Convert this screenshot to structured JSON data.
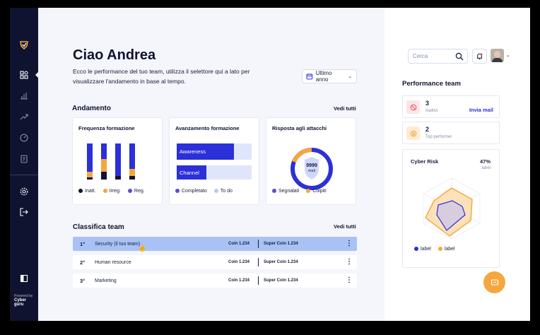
{
  "sidebar": {
    "items": [
      {
        "icon": "shield-logo-icon"
      },
      {
        "icon": "dashboard-icon"
      },
      {
        "icon": "bar-chart-icon"
      },
      {
        "icon": "trend-icon"
      },
      {
        "icon": "gauge-icon"
      },
      {
        "icon": "document-icon"
      },
      {
        "icon": "settings-icon"
      },
      {
        "icon": "logout-icon"
      },
      {
        "icon": "panel-toggle-icon"
      }
    ],
    "powered_by": "Powered by",
    "brand": "Cyber guru"
  },
  "header": {
    "greeting": "Ciao Andrea",
    "intro": "Ecco le performance del tuo team, utilizza il selettore qui a lato per visualizzare l'andamento in base al tempo.",
    "period_select": "Ultimo anno"
  },
  "andamento": {
    "title": "Andamento",
    "see_all": "Vedi tutti",
    "colors": {
      "blue": "#2b30d8",
      "orange": "#f4a73f",
      "navy": "#0f1330",
      "light": "#dfe6fb",
      "purple": "#5a4fcf"
    },
    "frequenza": {
      "title": "Frequenza formazione",
      "legend": [
        "Inatt.",
        "Irreg.",
        "Reg."
      ]
    },
    "avanzamento": {
      "title": "Avanzamento formazione",
      "bars": [
        {
          "label": "Awareness",
          "fraction": 0.76
        },
        {
          "label": "Channel",
          "fraction": 0.4
        }
      ],
      "legend": [
        "Completato",
        "To do"
      ]
    },
    "risposta": {
      "title": "Risposta agli attacchi",
      "center_value": "9999",
      "center_unit": "mail",
      "legend": [
        "Segnalati",
        "Colpiti"
      ]
    }
  },
  "classifica": {
    "title": "Classifica team",
    "see_all": "Vedi tutti",
    "rows": [
      {
        "rank": "1°",
        "name": "Security (il tuo team)",
        "coin": "Coin 1.234",
        "super": "Super Coin 1.234",
        "highlight": true
      },
      {
        "rank": "2°",
        "name": "Human resource",
        "coin": "Coin 1.234",
        "super": "Super Coin 1.234",
        "highlight": false
      },
      {
        "rank": "3°",
        "name": "Marketing",
        "coin": "Coin 1.234",
        "super": "Super Coin 1.234",
        "highlight": false
      }
    ],
    "kebab": "⋮"
  },
  "right": {
    "search_placeholder": "Cerca",
    "perf_title": "Performance team",
    "stats": [
      {
        "num": "3",
        "label": "Inattivi",
        "action": "Invia mail",
        "icon": "inactive-icon"
      },
      {
        "num": "2",
        "label": "Top performer",
        "action": "",
        "icon": "user-star-icon"
      }
    ],
    "risk": {
      "title": "Cyber Risk",
      "percent": "47%",
      "label": "label",
      "legend": [
        "label",
        "label"
      ]
    }
  }
}
